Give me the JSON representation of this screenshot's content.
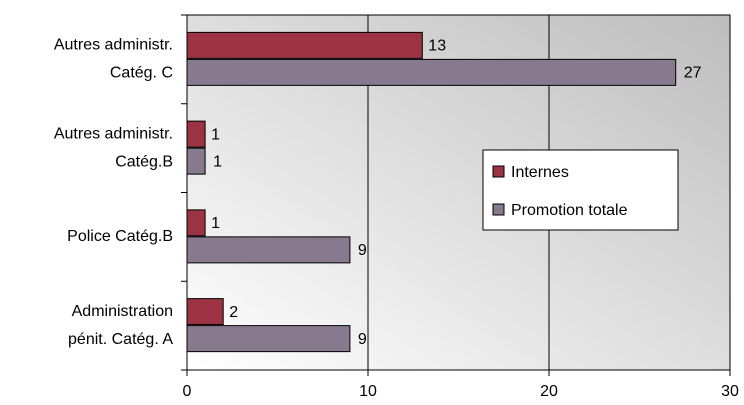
{
  "chart_data": {
    "type": "bar",
    "orientation": "horizontal",
    "categories": [
      [
        "Autres administr.",
        "Catég. C"
      ],
      [
        "Autres administr.",
        "Catég.B"
      ],
      [
        "Police Catég.B"
      ],
      [
        "Administration",
        "pénit. Catég. A"
      ]
    ],
    "series": [
      {
        "name": "Internes",
        "color": "#9b3342",
        "values": [
          13,
          1,
          1,
          2
        ]
      },
      {
        "name": "Promotion totale",
        "color": "#877a8f",
        "values": [
          27,
          1,
          9,
          9
        ]
      }
    ],
    "xlim": [
      0,
      30
    ],
    "xticks": [
      0,
      10,
      20,
      30
    ],
    "grid": true,
    "legend": "right"
  }
}
